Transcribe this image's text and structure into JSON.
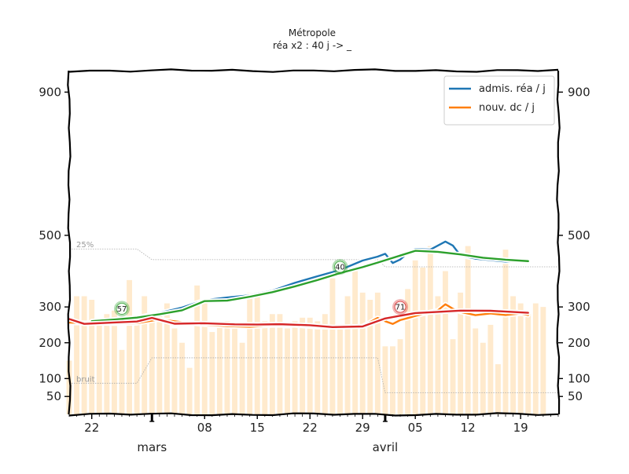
{
  "chart_data": {
    "type": "line",
    "title": "Métropole",
    "subtitle": "réa x2 : 40 j -> _",
    "xlabel": "",
    "ylabel": "",
    "ylim": [
      0,
      960
    ],
    "y_ticks": [
      50,
      100,
      200,
      300,
      500,
      900
    ],
    "x_range": [
      "2020-02-19",
      "2020-04-24"
    ],
    "x_ticks": [
      {
        "date": "2020-02-22",
        "label": "22"
      },
      {
        "date": "2020-03-08",
        "label": "08"
      },
      {
        "date": "2020-03-15",
        "label": "15"
      },
      {
        "date": "2020-03-22",
        "label": "22"
      },
      {
        "date": "2020-03-29",
        "label": "29"
      },
      {
        "date": "2020-04-05",
        "label": "05"
      },
      {
        "date": "2020-04-12",
        "label": "12"
      },
      {
        "date": "2020-04-19",
        "label": "19"
      }
    ],
    "month_labels": [
      {
        "date": "2020-03-01",
        "label": "mars"
      },
      {
        "date": "2020-04-01",
        "label": "avril"
      }
    ],
    "legend": {
      "position": "top-right"
    },
    "colors": {
      "blue": "#1f77b4",
      "orange": "#ff7f0e",
      "green": "#2ca02c",
      "red": "#d62728",
      "bars": "#ffe6c4",
      "grey": "#aaaaaa"
    },
    "series": [
      {
        "name": "admis. réa / j",
        "color": "#1f77b4",
        "x": [
          "2020-02-19",
          "2020-02-22",
          "2020-02-25",
          "2020-02-28",
          "2020-03-02",
          "2020-03-05",
          "2020-03-08",
          "2020-03-11",
          "2020-03-14",
          "2020-03-17",
          "2020-03-20",
          "2020-03-23",
          "2020-03-26",
          "2020-03-29",
          "2020-03-31",
          "2020-04-01",
          "2020-04-02",
          "2020-04-03",
          "2020-04-04",
          "2020-04-05",
          "2020-04-07",
          "2020-04-09",
          "2020-04-10",
          "2020-04-11",
          "2020-04-13",
          "2020-04-15",
          "2020-04-17",
          "2020-04-19",
          "2020-04-20"
        ],
        "values": [
          255,
          258,
          262,
          270,
          285,
          300,
          318,
          325,
          333,
          345,
          365,
          385,
          405,
          430,
          440,
          450,
          425,
          432,
          450,
          462,
          460,
          480,
          470,
          445,
          435,
          430,
          428,
          432,
          428
        ]
      },
      {
        "name": "nouv. dc / j",
        "color": "#ff7f0e",
        "x": [
          "2020-02-19",
          "2020-02-22",
          "2020-02-25",
          "2020-02-28",
          "2020-03-02",
          "2020-03-05",
          "2020-03-08",
          "2020-03-11",
          "2020-03-14",
          "2020-03-17",
          "2020-03-20",
          "2020-03-23",
          "2020-03-26",
          "2020-03-29",
          "2020-03-31",
          "2020-04-01",
          "2020-04-02",
          "2020-04-03",
          "2020-04-04",
          "2020-04-05",
          "2020-04-07",
          "2020-04-08",
          "2020-04-09",
          "2020-04-10",
          "2020-04-11",
          "2020-04-13",
          "2020-04-15",
          "2020-04-17",
          "2020-04-19",
          "2020-04-20"
        ],
        "values": [
          258,
          254,
          252,
          255,
          265,
          255,
          250,
          248,
          245,
          248,
          250,
          246,
          243,
          245,
          270,
          260,
          250,
          262,
          270,
          275,
          285,
          292,
          310,
          295,
          285,
          278,
          282,
          275,
          280,
          278
        ]
      },
      {
        "name": "",
        "color": "#2ca02c",
        "x": [
          "2020-02-22",
          "2020-02-25",
          "2020-02-28",
          "2020-03-02",
          "2020-03-05",
          "2020-03-08",
          "2020-03-11",
          "2020-03-14",
          "2020-03-17",
          "2020-03-20",
          "2020-03-23",
          "2020-03-26",
          "2020-03-29",
          "2020-03-31",
          "2020-04-05",
          "2020-04-08",
          "2020-04-11",
          "2020-04-14",
          "2020-04-17",
          "2020-04-20"
        ],
        "values": [
          258,
          264,
          272,
          280,
          290,
          318,
          320,
          328,
          340,
          358,
          375,
          392,
          410,
          425,
          457,
          453,
          448,
          440,
          432,
          427
        ]
      },
      {
        "name": "",
        "color": "#d62728",
        "x": [
          "2020-02-19",
          "2020-02-21",
          "2020-02-25",
          "2020-02-28",
          "2020-03-01",
          "2020-03-04",
          "2020-03-08",
          "2020-03-12",
          "2020-03-15",
          "2020-03-18",
          "2020-03-22",
          "2020-03-25",
          "2020-03-29",
          "2020-04-01",
          "2020-04-05",
          "2020-04-08",
          "2020-04-11",
          "2020-04-15",
          "2020-04-20"
        ],
        "values": [
          268,
          255,
          256,
          258,
          270,
          253,
          252,
          250,
          252,
          252,
          248,
          245,
          248,
          268,
          282,
          287,
          290,
          287,
          282
        ]
      }
    ],
    "bars": {
      "color": "#ffe6c4",
      "start": "2020-02-19",
      "values": [
        150,
        330,
        330,
        320,
        260,
        280,
        290,
        180,
        375,
        260,
        330,
        280,
        290,
        310,
        240,
        200,
        130,
        360,
        310,
        230,
        250,
        260,
        240,
        200,
        340,
        330,
        260,
        280,
        280,
        240,
        260,
        270,
        270,
        260,
        280,
        380,
        250,
        330,
        400,
        340,
        320,
        340,
        190,
        190,
        210,
        350,
        430,
        410,
        470,
        330,
        400,
        210,
        340,
        470,
        240,
        200,
        250,
        140,
        460,
        330,
        310,
        280,
        310,
        300
      ]
    },
    "reference_lines": {
      "upper": {
        "label": "25%",
        "x": [
          "2020-02-19",
          "2020-02-28",
          "2020-03-01",
          "2020-03-31",
          "2020-04-01",
          "2020-04-24"
        ],
        "values": [
          462,
          462,
          432,
          432,
          412,
          412
        ]
      },
      "lower": {
        "label": "bruit",
        "x": [
          "2020-02-19",
          "2020-02-28",
          "2020-03-01",
          "2020-03-31",
          "2020-04-01",
          "2020-04-24"
        ],
        "values": [
          87,
          87,
          158,
          158,
          60,
          60
        ]
      }
    },
    "badges": [
      {
        "text": "57",
        "date": "2020-02-26",
        "y": 295,
        "color": "#2ca02c"
      },
      {
        "text": "40",
        "date": "2020-03-26",
        "y": 412,
        "color": "#2ca02c"
      },
      {
        "text": "71",
        "date": "2020-04-03",
        "y": 300,
        "color": "#d62728"
      }
    ]
  }
}
